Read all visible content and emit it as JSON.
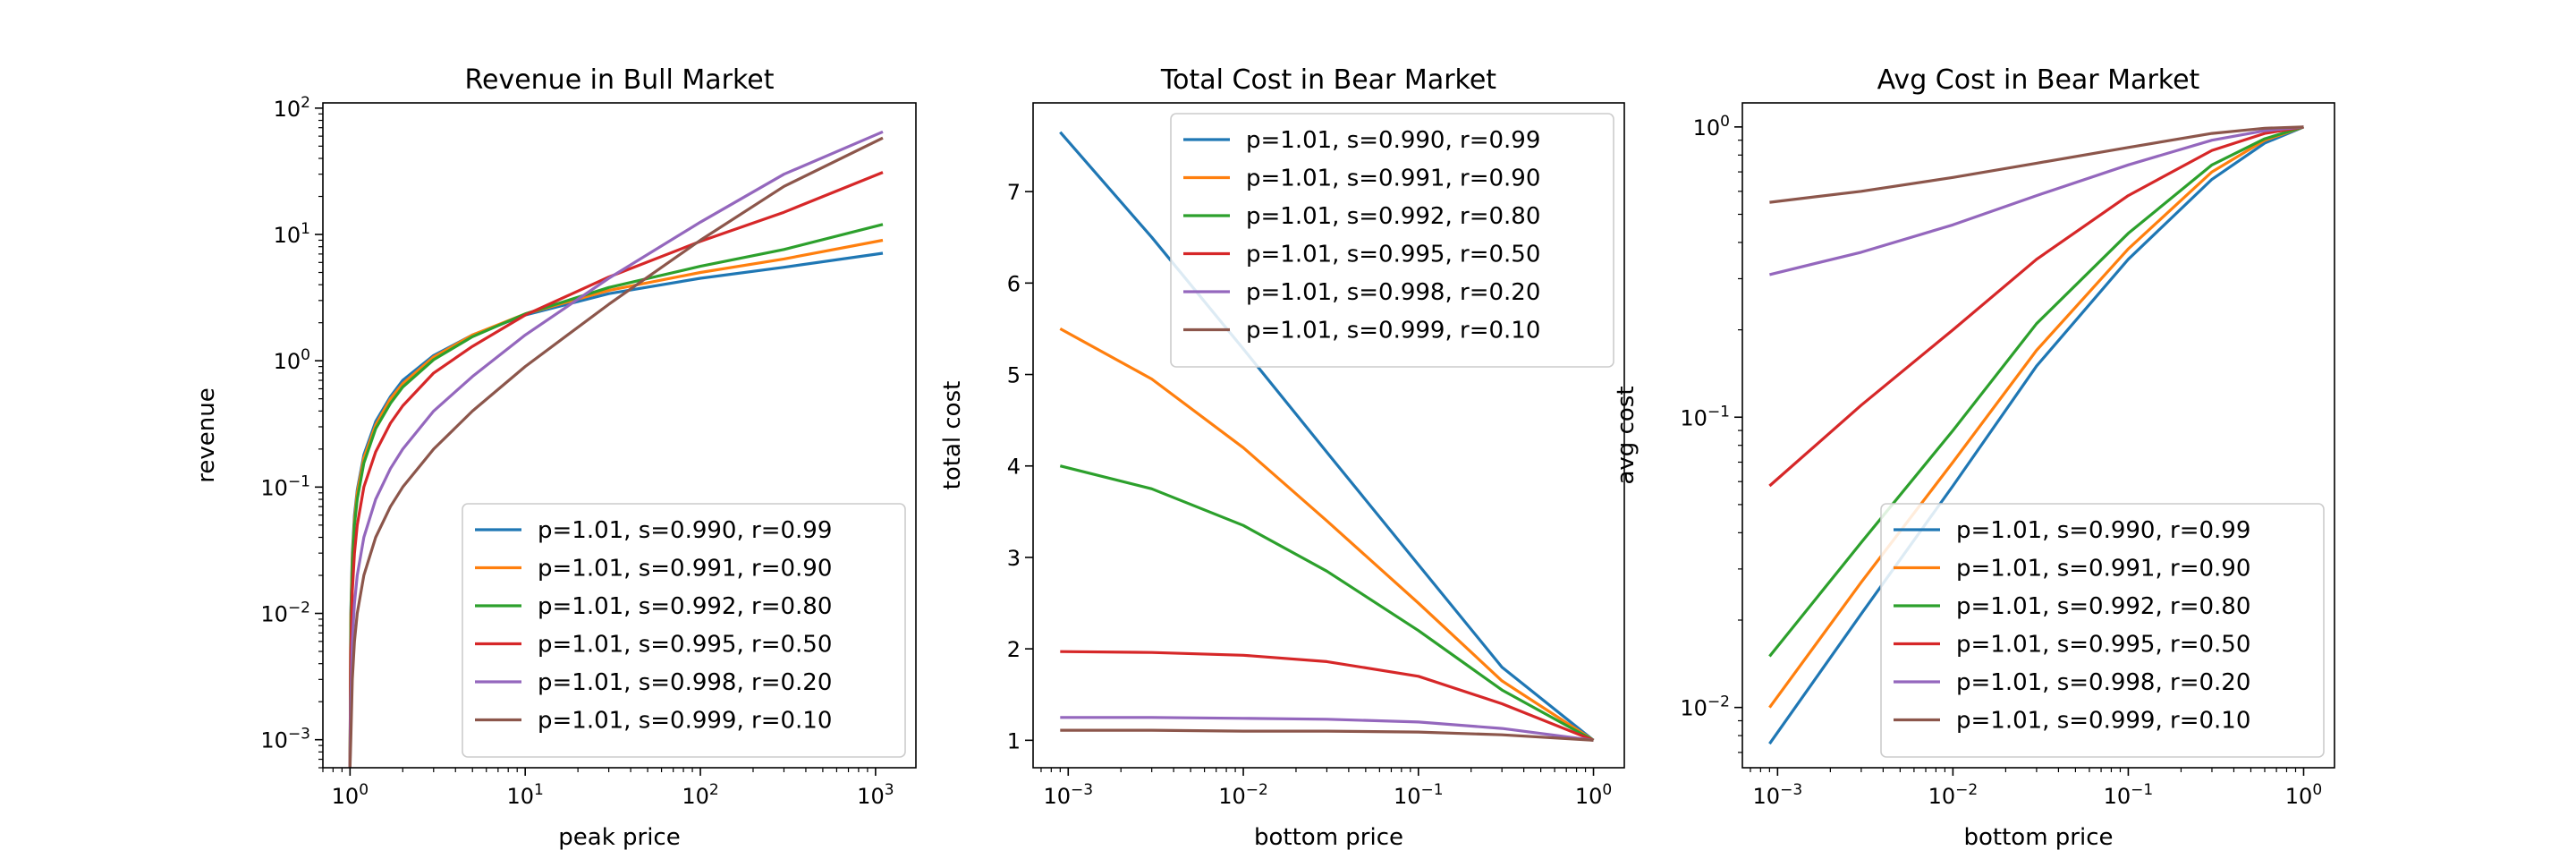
{
  "chart_data": [
    {
      "type": "line",
      "title": "Revenue in Bull Market",
      "xlabel": "peak price",
      "ylabel": "revenue",
      "xscale": "log",
      "yscale": "log",
      "xlim": [
        0.7,
        1700
      ],
      "ylim": [
        0.0006,
        110
      ],
      "xticks": [
        {
          "v": 1,
          "base": "10",
          "exp": "0"
        },
        {
          "v": 10,
          "base": "10",
          "exp": "1"
        },
        {
          "v": 100,
          "base": "10",
          "exp": "2"
        },
        {
          "v": 1000,
          "base": "10",
          "exp": "3"
        }
      ],
      "yticks": [
        {
          "v": 0.001,
          "base": "10",
          "exp": "−3"
        },
        {
          "v": 0.01,
          "base": "10",
          "exp": "−2"
        },
        {
          "v": 0.1,
          "base": "10",
          "exp": "−1"
        },
        {
          "v": 1,
          "base": "10",
          "exp": "0"
        },
        {
          "v": 10,
          "base": "10",
          "exp": "1"
        },
        {
          "v": 100,
          "base": "10",
          "exp": "2"
        }
      ],
      "legend_position": "lower-right",
      "series": [
        {
          "name": "p=1.01, s=0.990, r=0.99",
          "color": "#1f77b4",
          "x": [
            1.0,
            1.01,
            1.03,
            1.06,
            1.1,
            1.2,
            1.4,
            1.7,
            2,
            3,
            5,
            10,
            30,
            100,
            300,
            1100
          ],
          "y": [
            0.0006,
            0.01,
            0.03,
            0.06,
            0.095,
            0.18,
            0.33,
            0.52,
            0.7,
            1.1,
            1.6,
            2.3,
            3.4,
            4.5,
            5.5,
            7.1
          ]
        },
        {
          "name": "p=1.01, s=0.991, r=0.90",
          "color": "#ff7f0e",
          "x": [
            1.0,
            1.01,
            1.03,
            1.06,
            1.1,
            1.2,
            1.4,
            1.7,
            2,
            3,
            5,
            10,
            30,
            100,
            300,
            1100
          ],
          "y": [
            0.0006,
            0.009,
            0.027,
            0.055,
            0.09,
            0.17,
            0.31,
            0.5,
            0.66,
            1.07,
            1.6,
            2.35,
            3.6,
            5.0,
            6.4,
            9.0
          ]
        },
        {
          "name": "p=1.01, s=0.992, r=0.80",
          "color": "#2ca02c",
          "x": [
            1.0,
            1.01,
            1.03,
            1.06,
            1.1,
            1.2,
            1.4,
            1.7,
            2,
            3,
            5,
            10,
            30,
            100,
            300,
            1100
          ],
          "y": [
            0.0006,
            0.008,
            0.024,
            0.05,
            0.08,
            0.155,
            0.29,
            0.46,
            0.62,
            1.02,
            1.55,
            2.35,
            3.8,
            5.6,
            7.6,
            12.0
          ]
        },
        {
          "name": "p=1.01, s=0.995, r=0.50",
          "color": "#d62728",
          "x": [
            1.0,
            1.01,
            1.03,
            1.06,
            1.1,
            1.2,
            1.4,
            1.7,
            2,
            3,
            5,
            10,
            30,
            100,
            300,
            1100
          ],
          "y": [
            0.0006,
            0.005,
            0.015,
            0.03,
            0.05,
            0.1,
            0.19,
            0.32,
            0.44,
            0.8,
            1.3,
            2.3,
            4.6,
            8.8,
            15.0,
            31.0
          ]
        },
        {
          "name": "p=1.01, s=0.998, r=0.20",
          "color": "#9467bd",
          "x": [
            1.0,
            1.01,
            1.03,
            1.06,
            1.1,
            1.2,
            1.4,
            1.7,
            2,
            3,
            5,
            10,
            30,
            100,
            300,
            1100
          ],
          "y": [
            0.0006,
            0.002,
            0.006,
            0.012,
            0.02,
            0.04,
            0.08,
            0.14,
            0.2,
            0.4,
            0.75,
            1.6,
            4.5,
            12.5,
            30.0,
            65.0
          ]
        },
        {
          "name": "p=1.01, s=0.999, r=0.10",
          "color": "#8c564b",
          "x": [
            1.0,
            1.01,
            1.03,
            1.06,
            1.1,
            1.2,
            1.4,
            1.7,
            2,
            3,
            5,
            10,
            30,
            100,
            300,
            1100
          ],
          "y": [
            0.0006,
            0.001,
            0.003,
            0.006,
            0.01,
            0.02,
            0.04,
            0.07,
            0.1,
            0.2,
            0.4,
            0.9,
            2.8,
            9.0,
            24.0,
            58.0
          ]
        }
      ]
    },
    {
      "type": "line",
      "title": "Total Cost in Bear Market",
      "xlabel": "bottom price",
      "ylabel": "total cost",
      "xscale": "log",
      "yscale": "linear",
      "xlim": [
        0.00063,
        1.5
      ],
      "ylim": [
        0.7,
        7.97
      ],
      "xticks": [
        {
          "v": 0.001,
          "base": "10",
          "exp": "−3"
        },
        {
          "v": 0.01,
          "base": "10",
          "exp": "−2"
        },
        {
          "v": 0.1,
          "base": "10",
          "exp": "−1"
        },
        {
          "v": 1,
          "base": "10",
          "exp": "0"
        }
      ],
      "yticks": [
        {
          "v": 1,
          "base": "1",
          "exp": ""
        },
        {
          "v": 2,
          "base": "2",
          "exp": ""
        },
        {
          "v": 3,
          "base": "3",
          "exp": ""
        },
        {
          "v": 4,
          "base": "4",
          "exp": ""
        },
        {
          "v": 5,
          "base": "5",
          "exp": ""
        },
        {
          "v": 6,
          "base": "6",
          "exp": ""
        },
        {
          "v": 7,
          "base": "7",
          "exp": ""
        }
      ],
      "legend_position": "upper-right",
      "series": [
        {
          "name": "p=1.01, s=0.990, r=0.99",
          "color": "#1f77b4",
          "x": [
            0.0009,
            0.003,
            0.01,
            0.03,
            0.1,
            0.3,
            1.0
          ],
          "y": [
            7.65,
            6.5,
            5.28,
            4.15,
            2.92,
            1.8,
            1.0
          ]
        },
        {
          "name": "p=1.01, s=0.991, r=0.90",
          "color": "#ff7f0e",
          "x": [
            0.0009,
            0.003,
            0.01,
            0.03,
            0.1,
            0.3,
            1.0
          ],
          "y": [
            5.5,
            4.95,
            4.2,
            3.4,
            2.5,
            1.65,
            1.0
          ]
        },
        {
          "name": "p=1.01, s=0.992, r=0.80",
          "color": "#2ca02c",
          "x": [
            0.0009,
            0.003,
            0.01,
            0.03,
            0.1,
            0.3,
            1.0
          ],
          "y": [
            4.0,
            3.75,
            3.35,
            2.85,
            2.2,
            1.55,
            1.0
          ]
        },
        {
          "name": "p=1.01, s=0.995, r=0.50",
          "color": "#d62728",
          "x": [
            0.0009,
            0.003,
            0.01,
            0.03,
            0.1,
            0.3,
            1.0
          ],
          "y": [
            1.97,
            1.96,
            1.93,
            1.86,
            1.7,
            1.4,
            1.0
          ]
        },
        {
          "name": "p=1.01, s=0.998, r=0.20",
          "color": "#9467bd",
          "x": [
            0.0009,
            0.003,
            0.01,
            0.03,
            0.1,
            0.3,
            1.0
          ],
          "y": [
            1.25,
            1.25,
            1.24,
            1.23,
            1.2,
            1.13,
            1.0
          ]
        },
        {
          "name": "p=1.01, s=0.999, r=0.10",
          "color": "#8c564b",
          "x": [
            0.0009,
            0.003,
            0.01,
            0.03,
            0.1,
            0.3,
            1.0
          ],
          "y": [
            1.11,
            1.11,
            1.1,
            1.1,
            1.09,
            1.06,
            1.0
          ]
        }
      ]
    },
    {
      "type": "line",
      "title": "Avg Cost in Bear Market",
      "xlabel": "bottom price",
      "ylabel": "avg cost",
      "xscale": "log",
      "yscale": "log",
      "xlim": [
        0.00063,
        1.5
      ],
      "ylim": [
        0.0062,
        1.21
      ],
      "xticks": [
        {
          "v": 0.001,
          "base": "10",
          "exp": "−3"
        },
        {
          "v": 0.01,
          "base": "10",
          "exp": "−2"
        },
        {
          "v": 0.1,
          "base": "10",
          "exp": "−1"
        },
        {
          "v": 1,
          "base": "10",
          "exp": "0"
        }
      ],
      "yticks": [
        {
          "v": 0.01,
          "base": "10",
          "exp": "−2"
        },
        {
          "v": 0.1,
          "base": "10",
          "exp": "−1"
        },
        {
          "v": 1,
          "base": "10",
          "exp": "0"
        }
      ],
      "legend_position": "lower-right",
      "series": [
        {
          "name": "p=1.01, s=0.990, r=0.99",
          "color": "#1f77b4",
          "x": [
            0.0009,
            0.003,
            0.01,
            0.03,
            0.1,
            0.3,
            0.6,
            1.0
          ],
          "y": [
            0.0075,
            0.021,
            0.058,
            0.15,
            0.35,
            0.66,
            0.88,
            1.0
          ]
        },
        {
          "name": "p=1.01, s=0.991, r=0.90",
          "color": "#ff7f0e",
          "x": [
            0.0009,
            0.003,
            0.01,
            0.03,
            0.1,
            0.3,
            0.6,
            1.0
          ],
          "y": [
            0.01,
            0.027,
            0.07,
            0.17,
            0.38,
            0.7,
            0.9,
            1.0
          ]
        },
        {
          "name": "p=1.01, s=0.992, r=0.80",
          "color": "#2ca02c",
          "x": [
            0.0009,
            0.003,
            0.01,
            0.03,
            0.1,
            0.3,
            0.6,
            1.0
          ],
          "y": [
            0.015,
            0.037,
            0.09,
            0.21,
            0.43,
            0.74,
            0.91,
            1.0
          ]
        },
        {
          "name": "p=1.01, s=0.995, r=0.50",
          "color": "#d62728",
          "x": [
            0.0009,
            0.003,
            0.01,
            0.03,
            0.1,
            0.3,
            0.6,
            1.0
          ],
          "y": [
            0.058,
            0.11,
            0.2,
            0.35,
            0.58,
            0.83,
            0.95,
            1.0
          ]
        },
        {
          "name": "p=1.01, s=0.998, r=0.20",
          "color": "#9467bd",
          "x": [
            0.0009,
            0.003,
            0.01,
            0.03,
            0.1,
            0.3,
            0.6,
            1.0
          ],
          "y": [
            0.31,
            0.37,
            0.46,
            0.58,
            0.74,
            0.9,
            0.97,
            1.0
          ]
        },
        {
          "name": "p=1.01, s=0.999, r=0.10",
          "color": "#8c564b",
          "x": [
            0.0009,
            0.003,
            0.01,
            0.03,
            0.1,
            0.3,
            0.6,
            1.0
          ],
          "y": [
            0.55,
            0.6,
            0.67,
            0.75,
            0.85,
            0.95,
            0.99,
            1.0
          ]
        }
      ]
    }
  ]
}
